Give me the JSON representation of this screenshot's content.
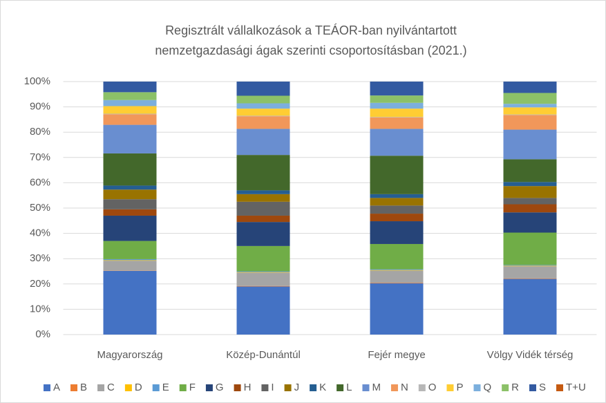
{
  "chart_data": {
    "type": "stacked_bar",
    "title": [
      "Regisztrált vállalkozások a TEÁOR-ban nyilvántartott",
      "nemzetgazdasági ágak szerinti csoportosításban (2021.)"
    ],
    "categories": [
      "Magyarország",
      "Közép-Dunántúl",
      "Fejér megye",
      "Völgy Vidék térség"
    ],
    "ylim": [
      0,
      100
    ],
    "yticks": [
      {
        "value": 0,
        "label": "0%"
      },
      {
        "value": 10,
        "label": "10%"
      },
      {
        "value": 20,
        "label": "20%"
      },
      {
        "value": 30,
        "label": "30%"
      },
      {
        "value": 40,
        "label": "40%"
      },
      {
        "value": 50,
        "label": "50%"
      },
      {
        "value": 60,
        "label": "60%"
      },
      {
        "value": 70,
        "label": "70%"
      },
      {
        "value": 80,
        "label": "80%"
      },
      {
        "value": 90,
        "label": "90%"
      },
      {
        "value": 100,
        "label": "100%"
      }
    ],
    "grid": true,
    "legend": "bottom",
    "series": [
      {
        "name": "A",
        "color": "#4472c4",
        "values": [
          25.2,
          19,
          20.3,
          22
        ]
      },
      {
        "name": "B",
        "color": "#ed7d31",
        "values": [
          0.1,
          0.2,
          0.2,
          0.2
        ]
      },
      {
        "name": "C",
        "color": "#a5a5a5",
        "values": [
          3.9,
          5.3,
          4.8,
          4.8
        ]
      },
      {
        "name": "D",
        "color": "#ffc000",
        "values": [
          0.2,
          0.2,
          0.2,
          0.2
        ]
      },
      {
        "name": "E",
        "color": "#5b9bd5",
        "values": [
          0.4,
          0.3,
          0.3,
          0.3
        ]
      },
      {
        "name": "F",
        "color": "#70ad47",
        "values": [
          7.2,
          10,
          10,
          12.8
        ]
      },
      {
        "name": "G",
        "color": "#264478",
        "values": [
          10,
          9.5,
          9,
          8
        ]
      },
      {
        "name": "H",
        "color": "#9e480e",
        "values": [
          2.5,
          2.5,
          3,
          3.2
        ]
      },
      {
        "name": "I",
        "color": "#636363",
        "values": [
          4,
          5.5,
          3.2,
          2.5
        ]
      },
      {
        "name": "J",
        "color": "#997300",
        "values": [
          3.8,
          3,
          3,
          4.7
        ]
      },
      {
        "name": "K",
        "color": "#255e91",
        "values": [
          1.6,
          1.5,
          1.5,
          1.6
        ]
      },
      {
        "name": "L",
        "color": "#43682b",
        "values": [
          12.7,
          14,
          15.2,
          9
        ]
      },
      {
        "name": "M",
        "color": "#698ed0",
        "values": [
          11.3,
          10.3,
          10.6,
          11.7
        ]
      },
      {
        "name": "N",
        "color": "#f1975a",
        "values": [
          4.2,
          5,
          4.5,
          5.8
        ]
      },
      {
        "name": "O",
        "color": "#b7b7b7",
        "values": [
          0.2,
          0.2,
          0.2,
          0.2
        ]
      },
      {
        "name": "P",
        "color": "#ffcd33",
        "values": [
          3,
          2.8,
          3.3,
          2.8
        ]
      },
      {
        "name": "Q",
        "color": "#7cafdd",
        "values": [
          2.4,
          2.1,
          2.3,
          1.4
        ]
      },
      {
        "name": "R",
        "color": "#8cc168",
        "values": [
          3.1,
          3,
          2.9,
          4.3
        ]
      },
      {
        "name": "S",
        "color": "#335aa1",
        "values": [
          4.2,
          5.6,
          5.5,
          4.5
        ]
      },
      {
        "name": "T+U",
        "color": "#c55a11",
        "values": [
          0,
          0,
          0,
          0
        ]
      }
    ]
  }
}
